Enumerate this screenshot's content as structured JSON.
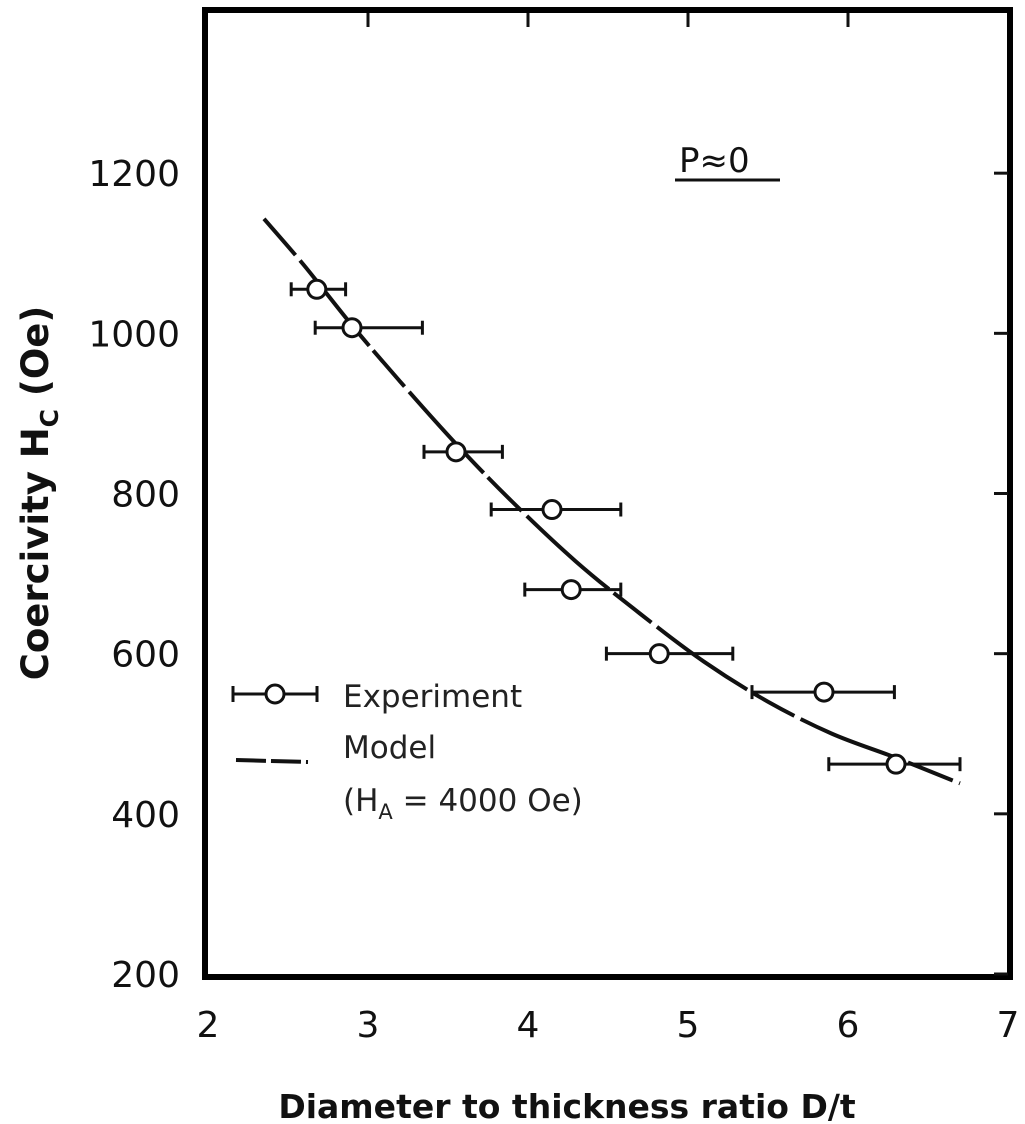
{
  "chart_data": {
    "type": "scatter",
    "title": "",
    "xlabel": "Diameter to thickness ratio D/t",
    "ylabel_main": "Coercivity H",
    "ylabel_sub": "C",
    "ylabel_unit": " (Oe)",
    "xlim": [
      2,
      7
    ],
    "ylim": [
      200,
      1400
    ],
    "x_ticks": [
      2,
      3,
      4,
      5,
      6,
      7
    ],
    "y_ticks": [
      200,
      400,
      600,
      800,
      1000,
      1200
    ],
    "grid": false,
    "legend_placement": "lower-left",
    "annotation": "P≈0",
    "series": [
      {
        "name": "Experiment",
        "kind": "points-with-xerror",
        "points": [
          {
            "x": 2.68,
            "y": 1055,
            "xmin": 2.52,
            "xmax": 2.86
          },
          {
            "x": 2.9,
            "y": 1007,
            "xmin": 2.67,
            "xmax": 3.34
          },
          {
            "x": 3.55,
            "y": 852,
            "xmin": 3.35,
            "xmax": 3.84
          },
          {
            "x": 4.15,
            "y": 780,
            "xmin": 3.77,
            "xmax": 4.58
          },
          {
            "x": 4.27,
            "y": 680,
            "xmin": 3.98,
            "xmax": 4.58
          },
          {
            "x": 4.82,
            "y": 600,
            "xmin": 4.49,
            "xmax": 5.28
          },
          {
            "x": 5.85,
            "y": 552,
            "xmin": 5.4,
            "xmax": 6.29
          },
          {
            "x": 6.3,
            "y": 462,
            "xmin": 5.88,
            "xmax": 6.7
          }
        ]
      },
      {
        "name": "Model",
        "name_line2_pre": "(H",
        "name_line2_sub": "A",
        "name_line2_post": " = 4000 Oe)",
        "kind": "dashed-curve",
        "points": [
          {
            "x": 2.35,
            "y": 1143
          },
          {
            "x": 2.6,
            "y": 1085
          },
          {
            "x": 2.9,
            "y": 1010
          },
          {
            "x": 3.2,
            "y": 940
          },
          {
            "x": 3.55,
            "y": 862
          },
          {
            "x": 3.9,
            "y": 790
          },
          {
            "x": 4.3,
            "y": 715
          },
          {
            "x": 4.7,
            "y": 650
          },
          {
            "x": 5.1,
            "y": 590
          },
          {
            "x": 5.5,
            "y": 540
          },
          {
            "x": 5.9,
            "y": 500
          },
          {
            "x": 6.3,
            "y": 470
          },
          {
            "x": 6.7,
            "y": 438
          }
        ]
      }
    ]
  }
}
